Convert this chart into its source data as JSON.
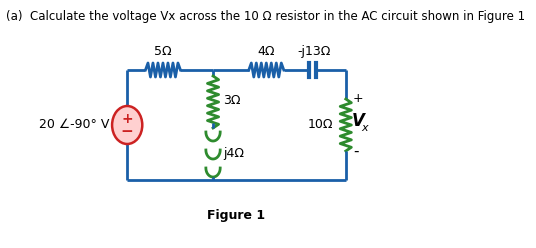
{
  "title": "(a)  Calculate the voltage Vx across the 10 Ω resistor in the AC circuit shown in Figure 1",
  "figure_label": "Figure 1",
  "bg_color": "#ffffff",
  "circuit_color": "#1a5fa8",
  "resistor_color_green": "#2e8b2e",
  "source_fill": "#ffd0d0",
  "source_border": "#cc2222",
  "label_5ohm": "5Ω",
  "label_4ohm": "4Ω",
  "label_j13ohm": "-j13Ω",
  "label_3ohm": "3Ω",
  "label_j4ohm": "j4Ω",
  "label_10ohm": "10Ω",
  "label_source": "20 ∠-90° V",
  "label_vx": "V",
  "label_vx_sub": "x",
  "label_plus": "+",
  "label_minus": "-"
}
